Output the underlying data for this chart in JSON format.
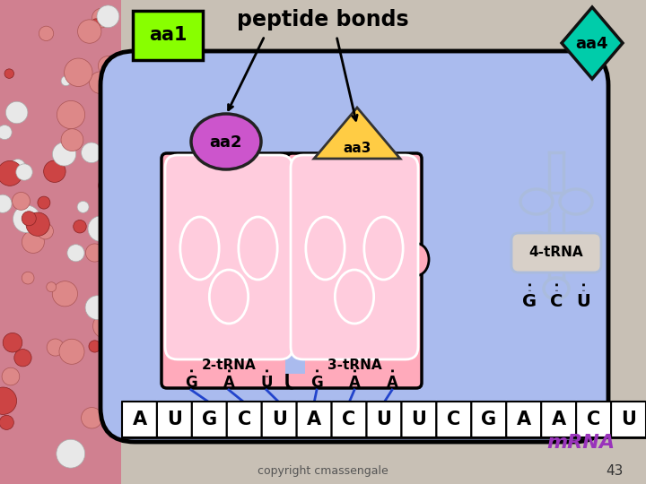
{
  "background_color": "#c8c0b5",
  "mrna_letters": [
    "A",
    "U",
    "G",
    "C",
    "U",
    "A",
    "C",
    "U",
    "U",
    "C",
    "G",
    "A",
    "A",
    "C",
    "U"
  ],
  "ribosome_fill": "#aabbee",
  "trna_fill": "#ffaabb",
  "aa1_color": "#88ff00",
  "aa1_label": "aa1",
  "aa2_color": "#cc55cc",
  "aa2_label": "aa2",
  "aa3_color": "#ffcc44",
  "aa3_label": "aa3",
  "aa4_color": "#00ccaa",
  "aa4_label": "aa4",
  "peptide_bonds_label": "peptide bonds",
  "trna2_label": "2-tRNA",
  "trna3_label": "3-tRNA",
  "trna4_label": "4-tRNA",
  "trna2_codons": [
    "G",
    "A",
    "U"
  ],
  "trna3_codons": [
    "G",
    "A",
    "A"
  ],
  "trna4_codons": [
    "G",
    "C",
    "U"
  ],
  "mrna_label": "mRNA",
  "copyright": "copyright cmassengale",
  "page_num": "43",
  "inner_trna_color": "#ffccdd",
  "trna4_outline": "#aabbdd"
}
